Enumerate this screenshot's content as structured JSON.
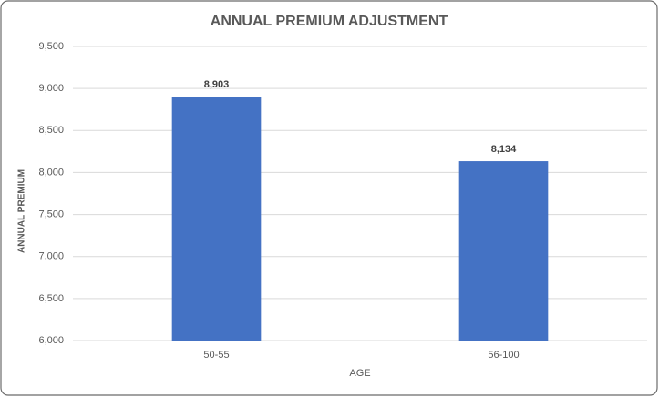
{
  "chart_data": {
    "type": "bar",
    "title": "ANNUAL PREMIUM ADJUSTMENT",
    "x_label": "AGE",
    "y_label": "ANNUAL PREMIUM",
    "categories": [
      "50-55",
      "56-100"
    ],
    "values": [
      8903,
      8134
    ],
    "value_labels": [
      "8,903",
      "8,134"
    ],
    "color": "#4472c4",
    "ylim": [
      6000,
      9500
    ],
    "yticks": [
      {
        "value": 6000,
        "label": "6,000"
      },
      {
        "value": 6500,
        "label": "6,500"
      },
      {
        "value": 7000,
        "label": "7,000"
      },
      {
        "value": 7500,
        "label": "7,500"
      },
      {
        "value": 8000,
        "label": "8,000"
      },
      {
        "value": 8500,
        "label": "8,500"
      },
      {
        "value": 9000,
        "label": "9,000"
      },
      {
        "value": 9500,
        "label": "9,500"
      }
    ],
    "grid": true
  }
}
